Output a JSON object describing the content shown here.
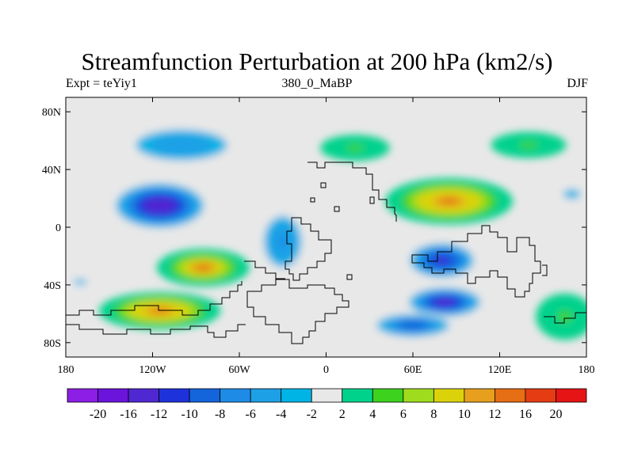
{
  "title": "Streamfunction Perturbation at 200 hPa (km2/s)",
  "subtitle_left": "Expt = teYiy1",
  "subtitle_center": "380_0_MaBP",
  "subtitle_right": "DJF",
  "map": {
    "lon_range": [
      -180,
      180
    ],
    "lat_range": [
      -90,
      90
    ],
    "x_ticks": [
      {
        "value": -180,
        "label": "180"
      },
      {
        "value": -120,
        "label": "120W"
      },
      {
        "value": -60,
        "label": "60W"
      },
      {
        "value": 0,
        "label": "0"
      },
      {
        "value": 60,
        "label": "60E"
      },
      {
        "value": 120,
        "label": "120E"
      },
      {
        "value": 180,
        "label": "180"
      }
    ],
    "y_ticks": [
      {
        "value": 80,
        "label": "80N"
      },
      {
        "value": 40,
        "label": "40N"
      },
      {
        "value": 0,
        "label": "0"
      },
      {
        "value": -40,
        "label": "40S"
      },
      {
        "value": -80,
        "label": "80S"
      }
    ]
  },
  "colorbar": {
    "colors": [
      "#8c1ee6",
      "#6a14dc",
      "#5028d2",
      "#1e32dc",
      "#1464dc",
      "#1e8ce6",
      "#1ea0e6",
      "#00b4e6",
      "#e8e8e8",
      "#00d28c",
      "#3cd21e",
      "#a0dc1e",
      "#dcd20a",
      "#e6a01e",
      "#e66e14",
      "#e63c14",
      "#e61414"
    ],
    "labels": [
      "-20",
      "-16",
      "-12",
      "-10",
      "-8",
      "-6",
      "-4",
      "-2",
      "2",
      "4",
      "6",
      "8",
      "10",
      "12",
      "16",
      "20"
    ]
  },
  "chart_data": {
    "type": "contour-map",
    "variable": "Streamfunction Perturbation",
    "level": "200 hPa",
    "units": "km2/s",
    "experiment": "teYiy1",
    "period": "380_0_MaBP",
    "season": "DJF",
    "contour_levels": [
      -20,
      -16,
      -12,
      -10,
      -8,
      -6,
      -4,
      -2,
      2,
      4,
      6,
      8,
      10,
      12,
      16,
      20
    ],
    "features": [
      {
        "lon": -100,
        "lat": 57,
        "value": -6
      },
      {
        "lon": -115,
        "lat": 15,
        "value": -16
      },
      {
        "lon": -85,
        "lat": -28,
        "value": 12
      },
      {
        "lon": -115,
        "lat": -58,
        "value": 13
      },
      {
        "lon": 85,
        "lat": 18,
        "value": 13
      },
      {
        "lon": 80,
        "lat": -23,
        "value": -13
      },
      {
        "lon": 82,
        "lat": -52,
        "value": -14
      },
      {
        "lon": 60,
        "lat": -68,
        "value": -10
      },
      {
        "lon": -30,
        "lat": -10,
        "value": -7
      },
      {
        "lon": 20,
        "lat": 55,
        "value": 5
      },
      {
        "lon": 140,
        "lat": 57,
        "value": 5
      },
      {
        "lon": -170,
        "lat": -38,
        "value": -3
      },
      {
        "lon": 165,
        "lat": -62,
        "value": 5
      },
      {
        "lon": 170,
        "lat": 23,
        "value": -3
      }
    ]
  }
}
